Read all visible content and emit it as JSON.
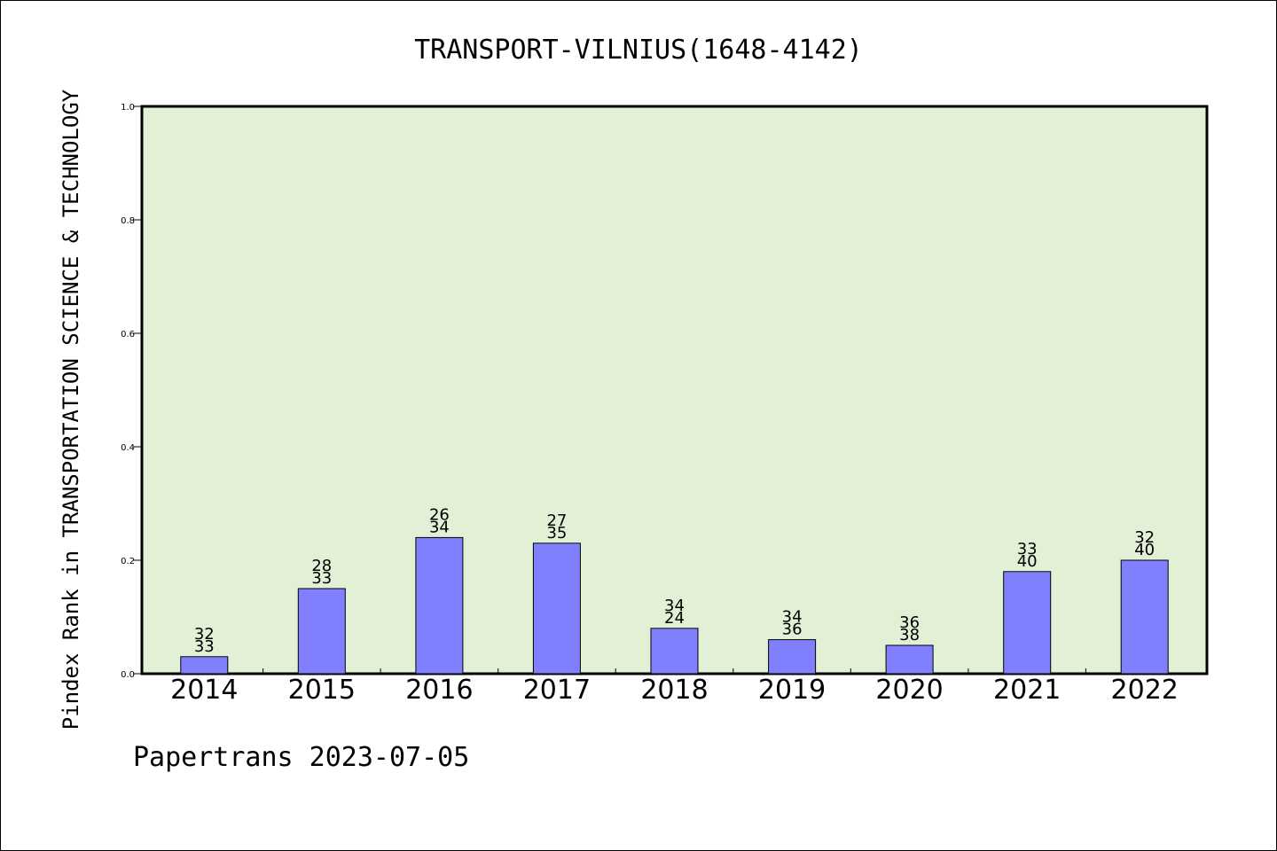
{
  "chart_data": {
    "type": "bar",
    "title": "TRANSPORT-VILNIUS(1648-4142)",
    "ylabel": "Pindex Rank in TRANSPORTATION SCIENCE & TECHNOLOGY",
    "xlabel": "",
    "footer": "Papertrans 2023-07-05",
    "categories": [
      "2014",
      "2015",
      "2016",
      "2017",
      "2018",
      "2019",
      "2020",
      "2021",
      "2022"
    ],
    "values": [
      0.03,
      0.15,
      0.24,
      0.23,
      0.08,
      0.06,
      0.05,
      0.18,
      0.2
    ],
    "label_top": [
      "32",
      "28",
      "26",
      "27",
      "34",
      "34",
      "36",
      "33",
      "32"
    ],
    "label_bottom": [
      "33",
      "33",
      "34",
      "35",
      "24",
      "36",
      "38",
      "40",
      "40"
    ],
    "yticks": [
      "0.0",
      "0.2",
      "0.4",
      "0.6",
      "0.8",
      "1.0"
    ],
    "ylim": [
      0,
      1.0
    ],
    "grid": false,
    "legend": "none",
    "colors": {
      "plot_background": "#e2f0d6",
      "bar_fill": "#8080ff",
      "bar_stroke": "#000000"
    }
  }
}
